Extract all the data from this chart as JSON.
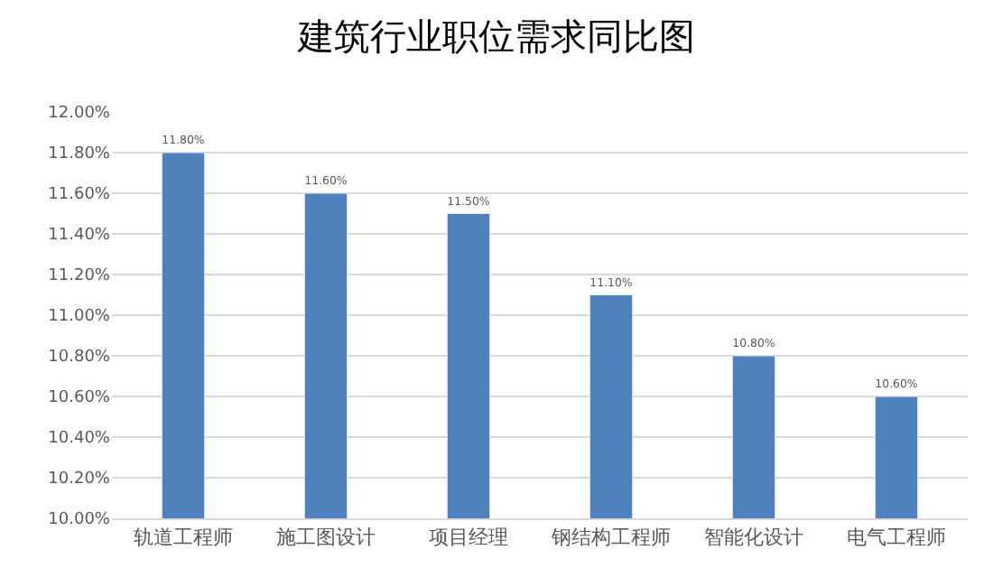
{
  "chart_data": {
    "type": "bar",
    "title": "建筑行业职位需求同比图",
    "categories": [
      "轨道工程师",
      "施工图设计",
      "项目经理",
      "钢结构工程师",
      "智能化设计",
      "电气工程师"
    ],
    "values": [
      11.8,
      11.6,
      11.5,
      11.1,
      10.8,
      10.6
    ],
    "value_labels": [
      "11.80%",
      "11.60%",
      "11.50%",
      "11.10%",
      "10.80%",
      "10.60%"
    ],
    "color": "#4f81bd",
    "ylim": [
      10,
      12
    ],
    "yticks": [
      {
        "value": 10,
        "label": "10.00%"
      },
      {
        "value": 10.2,
        "label": "10.20%"
      },
      {
        "value": 10.4,
        "label": "10.40%"
      },
      {
        "value": 10.6,
        "label": "10.60%"
      },
      {
        "value": 10.8,
        "label": "10.80%"
      },
      {
        "value": 11,
        "label": "11.00%"
      },
      {
        "value": 11.2,
        "label": "11.20%"
      },
      {
        "value": 11.4,
        "label": "11.40%"
      },
      {
        "value": 11.6,
        "label": "11.60%"
      },
      {
        "value": 11.8,
        "label": "11.80%"
      },
      {
        "value": 12,
        "label": "12.00%"
      }
    ],
    "grid": "y"
  }
}
